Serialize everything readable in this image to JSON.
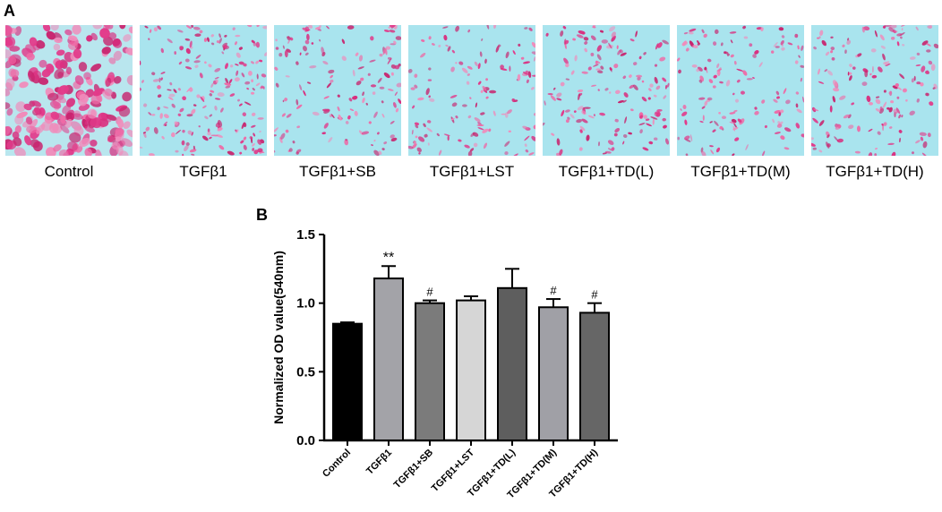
{
  "panels": {
    "a_label": "A",
    "b_label": "B"
  },
  "micrographs": [
    {
      "caption": "Control",
      "density": 0.9
    },
    {
      "caption": "TGFβ1",
      "density": 0.75
    },
    {
      "caption": "TGFβ1+SB",
      "density": 0.45
    },
    {
      "caption": "TGFβ1+LST",
      "density": 0.4
    },
    {
      "caption": "TGFβ1+TD(L)",
      "density": 0.5
    },
    {
      "caption": "TGFβ1+TD(M)",
      "density": 0.45
    },
    {
      "caption": "TGFβ1+TD(H)",
      "density": 0.55
    }
  ],
  "chart_data": {
    "type": "bar",
    "title": "",
    "ylabel": "Normalized  OD value(540nm)",
    "xlabel": "",
    "ylim": [
      0,
      1.5
    ],
    "yticks": [
      "0.0",
      "0.5",
      "1.0",
      "1.5"
    ],
    "categories": [
      "Control",
      "TGFβ1",
      "TGFβ1+SB",
      "TGFβ1+LST",
      "TGFβ1+TD(L)",
      "TGFβ1+TD(M)",
      "TGFβ1+TD(H)"
    ],
    "values": [
      0.85,
      1.18,
      1.0,
      1.02,
      1.11,
      0.97,
      0.93
    ],
    "errors": [
      0.01,
      0.09,
      0.02,
      0.03,
      0.14,
      0.06,
      0.07
    ],
    "annotations": [
      "",
      "**",
      "#",
      "",
      "",
      "#",
      "#"
    ],
    "colors": [
      "#000000",
      "#a3a3a8",
      "#7b7b7b",
      "#d6d6d6",
      "#5e5e5e",
      "#a0a0a6",
      "#666666"
    ]
  }
}
